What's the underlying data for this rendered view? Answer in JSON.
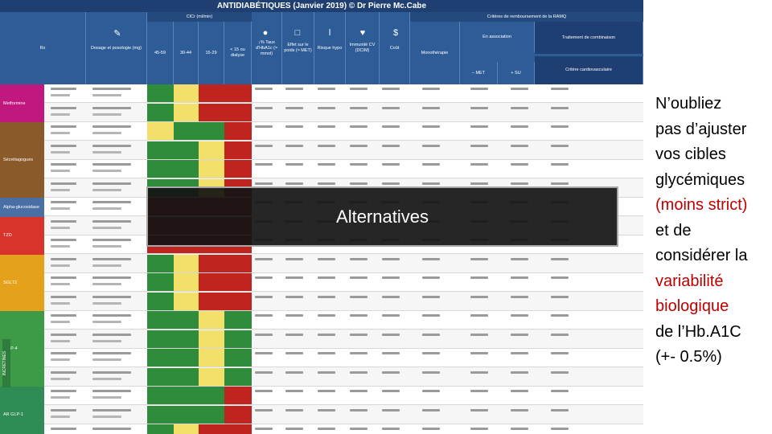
{
  "table": {
    "title": "ANTIDIABÉTIQUES (Janvier 2019) © Dr Pierre Mc.Cabe",
    "header_ckd": "ClCr (ml/min)",
    "header_ramq": "Critères de remboursement de la RAMQ",
    "columns": [
      "Rx",
      "Dosage et posologie (mg)",
      "45-59",
      "30-44",
      "15-29",
      "< 15 ou dialyse",
      "↓% Taux d'HbA1c (≈ mmol)",
      "Effet sur le poids (≈ MET)",
      "Risque hypo",
      "Immunité CV (DCIM)",
      "Coût",
      "Monothérapie",
      "En association",
      "– MET",
      "+ SU",
      "Traitement de combinaison",
      "Critère cardiovasculaire"
    ],
    "classes": [
      {
        "name": "Metformine",
        "color": "#c0187f"
      },
      {
        "name": "Sécrétagogues",
        "color": "#8b5a2b"
      },
      {
        "name": "Alpha-glucosidase",
        "color": "#4a6fa5"
      },
      {
        "name": "TZD",
        "color": "#d9342b"
      },
      {
        "name": "SGLT2",
        "color": "#e3a21a"
      },
      {
        "name": "IDPP-4",
        "color": "#3d9a47"
      },
      {
        "name": "AR GLP-1",
        "color": "#2f8c55"
      }
    ],
    "side_label": "INCRÉTINES"
  },
  "overlay": {
    "label": "Alternatives"
  },
  "note": {
    "lines": [
      {
        "text": "N’oubliez",
        "red": false
      },
      {
        "text": "pas d’ajuster",
        "red": false
      },
      {
        "text": "vos cibles",
        "red": false
      },
      {
        "text": "glycémiques",
        "red": false
      },
      {
        "text": "(moins strict)",
        "red": true
      },
      {
        "text": "et de",
        "red": false
      },
      {
        "text": "considérer la",
        "red": false
      },
      {
        "text": "variabilité",
        "red": true
      },
      {
        "text": "biologique",
        "red": true
      },
      {
        "text": "de l’Hb.A1C",
        "red": false
      },
      {
        "text": "(+- 0.5%)",
        "red": false
      }
    ]
  },
  "colors": {
    "header_blue": "#2e5c97",
    "title_blue": "#1f3f73",
    "ok_green": "#2f8c3a",
    "warn_yellow": "#f2e06a",
    "avoid_red": "#c0241e",
    "note_red": "#c00000"
  }
}
